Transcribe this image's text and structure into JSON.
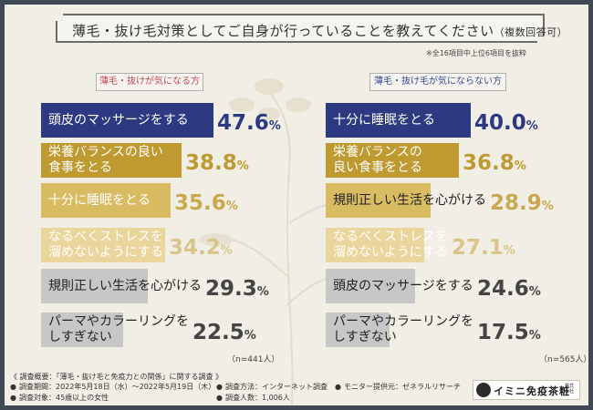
{
  "title": "薄毛・抜け毛対策としてご自身が行っていることを教えてください",
  "title_sub": "（複数回答可）",
  "note": "※全16項目中上位6項目を抜粋",
  "chart_data": [
    {
      "type": "bar",
      "title": "薄毛・抜けが気になる方",
      "n_label": "（n=441人）",
      "unit": "%",
      "categories": [
        "頭皮のマッサージをする",
        "栄養バランスの良い食事をとる",
        "十分に睡眠をとる",
        "なるべくストレスを溜めないようにする",
        "規則正しい生活を心がける",
        "パーマやカラーリングをしすぎない"
      ],
      "display_labels": [
        "頭皮のマッサージをする",
        "栄養バランスの良い\n食事をとる",
        "十分に睡眠をとる",
        "なるべくストレスを\n溜めないようにする",
        "規則正しい生活を心がける",
        "パーマやカラーリングを\nしすぎない"
      ],
      "values": [
        47.6,
        38.8,
        35.6,
        34.2,
        29.3,
        22.5
      ],
      "colors": [
        "#2d3a82",
        "#bf9a30",
        "#d9bc62",
        "#ead59c",
        "#c7c7c7",
        "#c7c7c7"
      ],
      "label_colors": [
        "#ffffff",
        "#ffffff",
        "#ffffff",
        "#ffffff",
        "#222222",
        "#222222"
      ],
      "value_colors": [
        "#2d3a82",
        "#bf9a30",
        "#c9a84e",
        "#d9c48a",
        "#444444",
        "#444444"
      ]
    },
    {
      "type": "bar",
      "title": "薄毛・抜け毛が気にならない方",
      "n_label": "（n=565人）",
      "unit": "%",
      "categories": [
        "十分に睡眠をとる",
        "栄養バランスの良い食事をとる",
        "規則正しい生活を心がける",
        "なるべくストレスを溜めないようにする",
        "頭皮のマッサージをする",
        "パーマやカラーリングをしすぎない"
      ],
      "display_labels": [
        "十分に睡眠をとる",
        "栄養バランスの\n良い食事をとる",
        "規則正しい生活を心がける",
        "なるべくストレスを\n溜めないようにする",
        "頭皮のマッサージをする",
        "パーマやカラーリングを\nしすぎない"
      ],
      "values": [
        40.0,
        36.8,
        28.9,
        27.1,
        24.6,
        17.5
      ],
      "colors": [
        "#2d3a82",
        "#bf9a30",
        "#d9bc62",
        "#ead59c",
        "#c7c7c7",
        "#c7c7c7"
      ],
      "label_colors": [
        "#ffffff",
        "#ffffff",
        "#222222",
        "#ffffff",
        "#222222",
        "#222222"
      ],
      "value_colors": [
        "#2d3a82",
        "#bf9a30",
        "#c9a84e",
        "#d9c48a",
        "#444444",
        "#444444"
      ]
    }
  ],
  "footer": {
    "heading": "《 調査概要：「薄毛・抜け毛と免疫力との関係」に関する調査 》",
    "items": [
      "調査期間：2022年5月18日（水）～2022年5月19日（木）",
      "調査方法：インターネット調査",
      "モニター提供元：ゼネラルリサーチ",
      "調査対象：45歳以上の女性",
      "調査人数：1,006人"
    ],
    "bullet": "●",
    "logo_name": "イミニ免疫茶粧",
    "logo_sub": "株式会社"
  }
}
